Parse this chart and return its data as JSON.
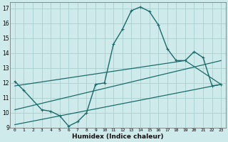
{
  "xlabel": "Humidex (Indice chaleur)",
  "bg_color": "#ceeaea",
  "grid_color": "#aacfcf",
  "line_color": "#1a6b6b",
  "xlim": [
    -0.5,
    23.5
  ],
  "ylim": [
    9,
    17.4
  ],
  "xticks": [
    0,
    1,
    2,
    3,
    4,
    5,
    6,
    7,
    8,
    9,
    10,
    11,
    12,
    13,
    14,
    15,
    16,
    17,
    18,
    19,
    20,
    21,
    22,
    23
  ],
  "yticks": [
    9,
    10,
    11,
    12,
    13,
    14,
    15,
    16,
    17
  ],
  "line1_x": [
    0,
    1,
    3,
    4,
    5,
    6,
    7,
    8,
    9,
    10,
    11,
    12,
    13,
    14,
    15,
    16,
    17,
    18,
    19,
    20,
    21,
    22,
    23
  ],
  "line1_y": [
    12.1,
    11.5,
    10.2,
    10.1,
    9.8,
    9.1,
    9.4,
    10.0,
    11.9,
    12.0,
    14.6,
    15.6,
    16.85,
    17.1,
    16.8,
    15.9,
    14.3,
    13.5,
    13.5,
    14.1,
    13.7,
    11.8,
    11.9
  ],
  "line2_x": [
    0,
    19,
    23
  ],
  "line2_y": [
    11.8,
    13.5,
    11.9
  ],
  "line3_x": [
    0,
    23
  ],
  "line3_y": [
    10.2,
    13.5
  ],
  "line4_x": [
    0,
    23
  ],
  "line4_y": [
    9.2,
    11.9
  ]
}
